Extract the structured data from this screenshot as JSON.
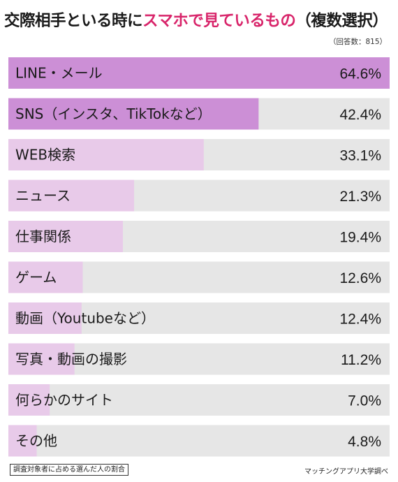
{
  "title_plain": "交際相手といる時に",
  "title_highlight": "スマホで見ているもの",
  "title_suffix": "（複数選択）",
  "note": "（回答数：815）",
  "footnote": "調査対象者に占める選んだ人の割合",
  "source": "マッチングアプリ大学調べ",
  "colors": {
    "bar_strong": "#cc8fd6",
    "bar_light": "#e8cae9",
    "track": "#e6e6e6",
    "title_highlight": "#d8246a"
  },
  "chart_data": {
    "type": "bar",
    "orientation": "horizontal",
    "xlim": [
      0,
      64.6
    ],
    "categories": [
      "LINE・メール",
      "SNS（インスタ、TikTokなど）",
      "WEB検索",
      "ニュース",
      "仕事関係",
      "ゲーム",
      "動画（Youtubeなど）",
      "写真・動画の撮影",
      "何らかのサイト",
      "その他"
    ],
    "values": [
      64.6,
      42.4,
      33.1,
      21.3,
      19.4,
      12.6,
      12.4,
      11.2,
      7.0,
      4.8
    ],
    "value_labels": [
      "64.6%",
      "42.4%",
      "33.1%",
      "21.3%",
      "19.4%",
      "12.6%",
      "12.4%",
      "11.2%",
      "7.0%",
      "4.8%"
    ],
    "highlight_top": 2
  }
}
